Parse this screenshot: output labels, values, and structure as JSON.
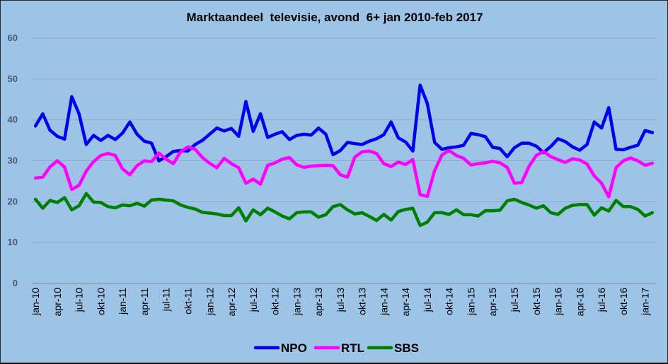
{
  "chart_data": {
    "type": "line",
    "title": "Marktaandeel  televisie, avond  6+ jan 2010-feb 2017",
    "xlabel": "",
    "ylabel": "",
    "ylim": [
      0,
      60
    ],
    "yticks": [
      0,
      10,
      20,
      30,
      40,
      50,
      60
    ],
    "grid": true,
    "legend": "bottom",
    "xtick_labels": [
      "jan-10",
      "apr-10",
      "jul-10",
      "okt-10",
      "jan-11",
      "apr-11",
      "jul-11",
      "okt-11",
      "jan-12",
      "apr-12",
      "jul-12",
      "okt-12",
      "jan-13",
      "apr-13",
      "jul-13",
      "okt-13",
      "jan-14",
      "apr-14",
      "jul-14",
      "okt-14",
      "jan-15",
      "apr-15",
      "jul-15",
      "okt-15",
      "jan-16",
      "apr-16",
      "jul-16",
      "okt-16",
      "jan-17"
    ],
    "series": [
      {
        "name": "NPO",
        "color": "#0000ee",
        "values": [
          38.5,
          41.5,
          37.5,
          36,
          35.3,
          45.7,
          41.5,
          34,
          36.2,
          35,
          36.2,
          35.2,
          36.8,
          39.5,
          36.5,
          34.8,
          34.3,
          30,
          31,
          32.3,
          32.5,
          32.4,
          34,
          35,
          36.5,
          38,
          37.3,
          37.9,
          36,
          44.5,
          37.2,
          41.5,
          35.7,
          36.5,
          37.1,
          35.2,
          36.2,
          36.5,
          36.3,
          38,
          36.5,
          31.5,
          32.5,
          34.5,
          34.2,
          34,
          34.8,
          35.4,
          36.4,
          39.5,
          35.6,
          34.6,
          32.4,
          48.5,
          44,
          34.5,
          32.8,
          33.2,
          33.4,
          33.8,
          36.7,
          36.4,
          35.9,
          33.3,
          33,
          31,
          33.2,
          34.3,
          34.3,
          33.6,
          32,
          33.5,
          35.4,
          34.7,
          33.4,
          32.6,
          34,
          39.5,
          38,
          43,
          32.8,
          32.7,
          33.3,
          33.8,
          37.4,
          36.9
        ]
      },
      {
        "name": "RTL",
        "color": "#ff00ff",
        "values": [
          25.8,
          26,
          28.5,
          30,
          28.5,
          23,
          24,
          27.5,
          29.8,
          31.3,
          31.8,
          31.3,
          28,
          26.6,
          28.8,
          30,
          29.8,
          31.9,
          30.4,
          29.3,
          32.2,
          33.4,
          32.8,
          30.8,
          29.4,
          28.3,
          30.6,
          29.3,
          28.3,
          24.5,
          25.5,
          24.3,
          28.9,
          29.5,
          30.4,
          30.8,
          29,
          28.4,
          28.7,
          28.8,
          28.9,
          28.8,
          26.6,
          26,
          30.9,
          32.2,
          32.4,
          31.8,
          29.3,
          28.6,
          29.7,
          29.1,
          30.3,
          21.7,
          21.3,
          27.6,
          31.4,
          32.5,
          31.3,
          30.6,
          29,
          29.3,
          29.5,
          29.9,
          29.5,
          28.4,
          24.5,
          24.7,
          28.6,
          31.3,
          32.3,
          31,
          30.3,
          29.6,
          30.5,
          30.2,
          29.2,
          26.3,
          24.5,
          21.2,
          28.3,
          30,
          30.7,
          30,
          28.9,
          29.4
        ]
      },
      {
        "name": "SBS",
        "color": "#008000",
        "values": [
          20.6,
          18.4,
          20.3,
          19.8,
          21,
          18,
          19,
          22,
          19.9,
          19.8,
          18.8,
          18.5,
          19.2,
          19,
          19.6,
          18.9,
          20.4,
          20.6,
          20.4,
          20.2,
          19.2,
          18.6,
          18.2,
          17.4,
          17.2,
          17,
          16.6,
          16.6,
          18.5,
          15.3,
          18,
          16.8,
          18.4,
          17.5,
          16.5,
          15.8,
          17.3,
          17.5,
          17.5,
          16.2,
          16.8,
          18.8,
          19.3,
          18,
          17,
          17.3,
          16.4,
          15.4,
          16.9,
          15.5,
          17.6,
          18.1,
          18.4,
          14.2,
          15,
          17.3,
          17.3,
          16.9,
          18,
          16.8,
          16.8,
          16.5,
          17.8,
          17.8,
          17.9,
          20.2,
          20.6,
          19.8,
          19.2,
          18.4,
          19,
          17.3,
          16.9,
          18.4,
          19.1,
          19.3,
          19.3,
          16.7,
          18.5,
          17.7,
          20.3,
          18.8,
          18.8,
          18.1,
          16.5,
          17.3
        ]
      }
    ]
  }
}
